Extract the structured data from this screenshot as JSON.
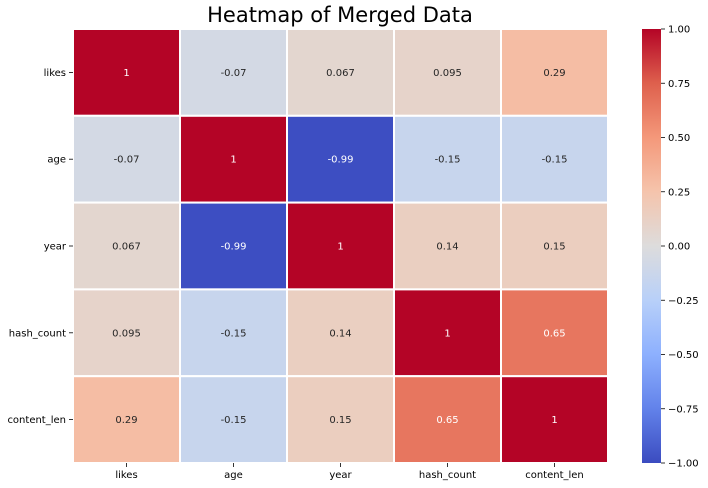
{
  "chart_data": {
    "type": "heatmap",
    "title": "Heatmap of Merged Data",
    "xlabel": "",
    "ylabel": "",
    "x_categories": [
      "likes",
      "age",
      "year",
      "hash_count",
      "content_len"
    ],
    "y_categories": [
      "likes",
      "age",
      "year",
      "hash_count",
      "content_len"
    ],
    "values": [
      [
        1,
        -0.07,
        0.067,
        0.095,
        0.29
      ],
      [
        -0.07,
        1,
        -0.99,
        -0.15,
        -0.15
      ],
      [
        0.067,
        -0.99,
        1,
        0.14,
        0.15
      ],
      [
        0.095,
        -0.15,
        0.14,
        1,
        0.65
      ],
      [
        0.29,
        -0.15,
        0.15,
        0.65,
        1
      ]
    ],
    "value_labels": [
      [
        "1",
        "-0.07",
        "0.067",
        "0.095",
        "0.29"
      ],
      [
        "-0.07",
        "1",
        "-0.99",
        "-0.15",
        "-0.15"
      ],
      [
        "0.067",
        "-0.99",
        "1",
        "0.14",
        "0.15"
      ],
      [
        "0.095",
        "-0.15",
        "0.14",
        "1",
        "0.65"
      ],
      [
        "0.29",
        "-0.15",
        "0.15",
        "0.65",
        "1"
      ]
    ],
    "colormap": "coolwarm",
    "colorbar": {
      "range": [
        -1.0,
        1.0
      ],
      "ticks": [
        "1.00",
        "0.75",
        "0.50",
        "0.25",
        "0.00",
        "−0.25",
        "−0.50",
        "−0.75",
        "−1.00"
      ],
      "tick_values": [
        1.0,
        0.75,
        0.5,
        0.25,
        0.0,
        -0.25,
        -0.5,
        -0.75,
        -1.0
      ]
    },
    "grid_lines": true,
    "grid_color": "#ffffff"
  }
}
